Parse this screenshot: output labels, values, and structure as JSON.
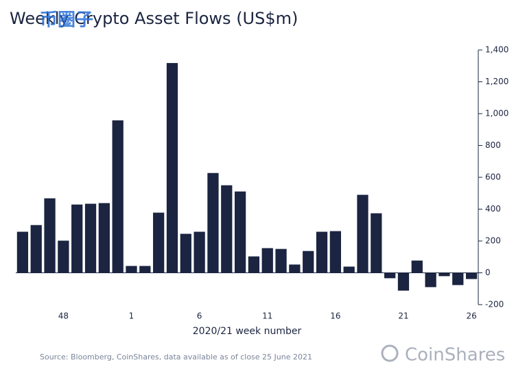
{
  "chart_data": {
    "type": "bar",
    "title": "Weekly Crypto Asset Flows (US$m)",
    "watermark": "币圈子",
    "x_label": "2020/21 week number",
    "source": "Source: Bloomberg, CoinShares, data available as of close 25 June 2021",
    "brand": "CoinShares",
    "categories": [
      null,
      null,
      null,
      "48",
      null,
      null,
      null,
      null,
      "1",
      null,
      null,
      null,
      null,
      "6",
      null,
      null,
      null,
      null,
      "11",
      null,
      null,
      null,
      null,
      "16",
      null,
      null,
      null,
      null,
      "21",
      null,
      null,
      null,
      null,
      "26"
    ],
    "values": [
      258,
      300,
      468,
      202,
      429,
      434,
      438,
      958,
      43,
      43,
      378,
      1318,
      245,
      258,
      627,
      550,
      511,
      103,
      155,
      150,
      52,
      137,
      258,
      262,
      39,
      490,
      374,
      -34,
      -112,
      77,
      -90,
      -21,
      -77,
      -39
    ],
    "color": "#1b2440",
    "ylim": [
      -200,
      1400
    ],
    "yticks": [
      -200,
      0,
      200,
      400,
      600,
      800,
      {
        "value": 1000,
        "label": "1,000"
      },
      {
        "value": 1200,
        "label": "1,200"
      },
      {
        "value": 1400,
        "label": "1,400"
      }
    ],
    "y_axis_side": "right",
    "grid": false
  }
}
